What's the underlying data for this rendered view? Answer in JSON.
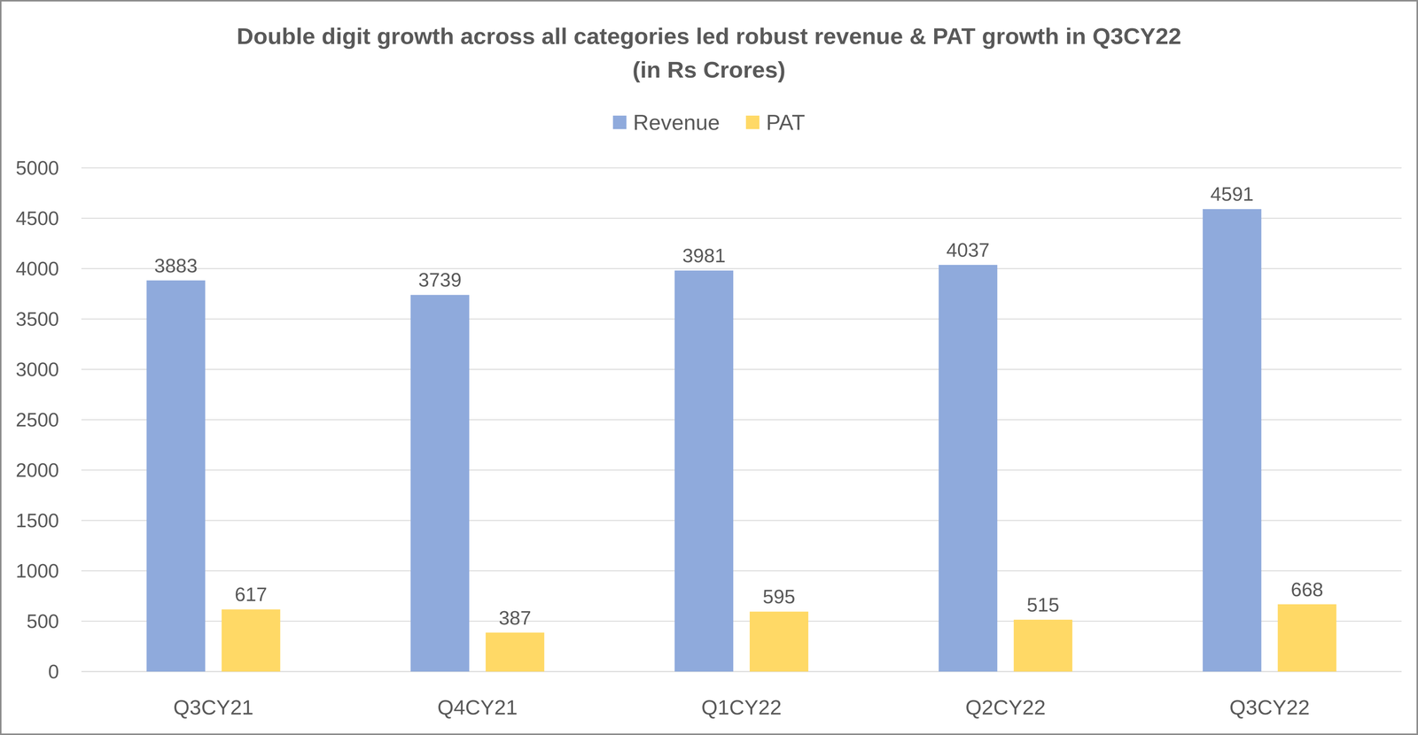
{
  "chart_data": {
    "type": "bar",
    "title": "Double digit growth across all categories led robust revenue & PAT growth in Q3CY22",
    "subtitle": "(in Rs Crores)",
    "categories": [
      "Q3CY21",
      "Q4CY21",
      "Q1CY22",
      "Q2CY22",
      "Q3CY22"
    ],
    "series": [
      {
        "name": "Revenue",
        "color": "#8faadc",
        "values": [
          3883,
          3739,
          3981,
          4037,
          4591
        ]
      },
      {
        "name": "PAT",
        "color": "#ffd966",
        "values": [
          617,
          387,
          595,
          515,
          668
        ]
      }
    ],
    "ylim": [
      0,
      5000
    ],
    "yticks": [
      0,
      500,
      1000,
      1500,
      2000,
      2500,
      3000,
      3500,
      4000,
      4500,
      5000
    ],
    "grid": true,
    "legend": "top",
    "data_labels": true
  }
}
